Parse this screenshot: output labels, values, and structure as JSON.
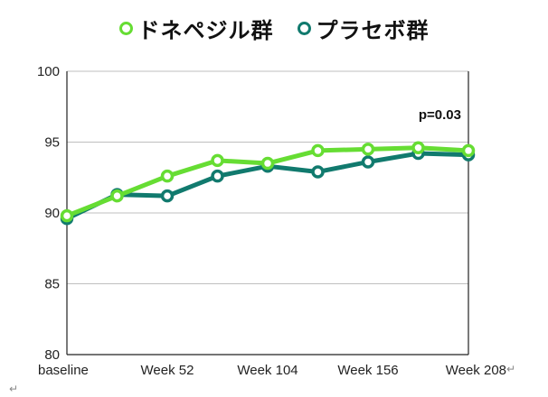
{
  "chart_data": {
    "type": "line",
    "categories": [
      "baseline",
      "",
      "Week 52",
      "",
      "Week 104",
      "",
      "Week 156",
      "",
      "Week 208"
    ],
    "series": [
      {
        "name": "ドネペジル群",
        "color": "#66dd33",
        "values": [
          89.8,
          91.2,
          92.6,
          93.7,
          93.5,
          94.4,
          94.5,
          94.6,
          94.4
        ]
      },
      {
        "name": "プラセボ群",
        "color": "#117a6e",
        "values": [
          89.6,
          91.3,
          91.2,
          92.6,
          93.3,
          92.9,
          93.6,
          94.2,
          94.1
        ]
      }
    ],
    "ylim": [
      80,
      100
    ],
    "yticks": [
      80,
      85,
      90,
      95,
      100
    ],
    "grid": true,
    "legend_position": "top",
    "annotation": "p=0.03"
  },
  "return_mark": "↵"
}
